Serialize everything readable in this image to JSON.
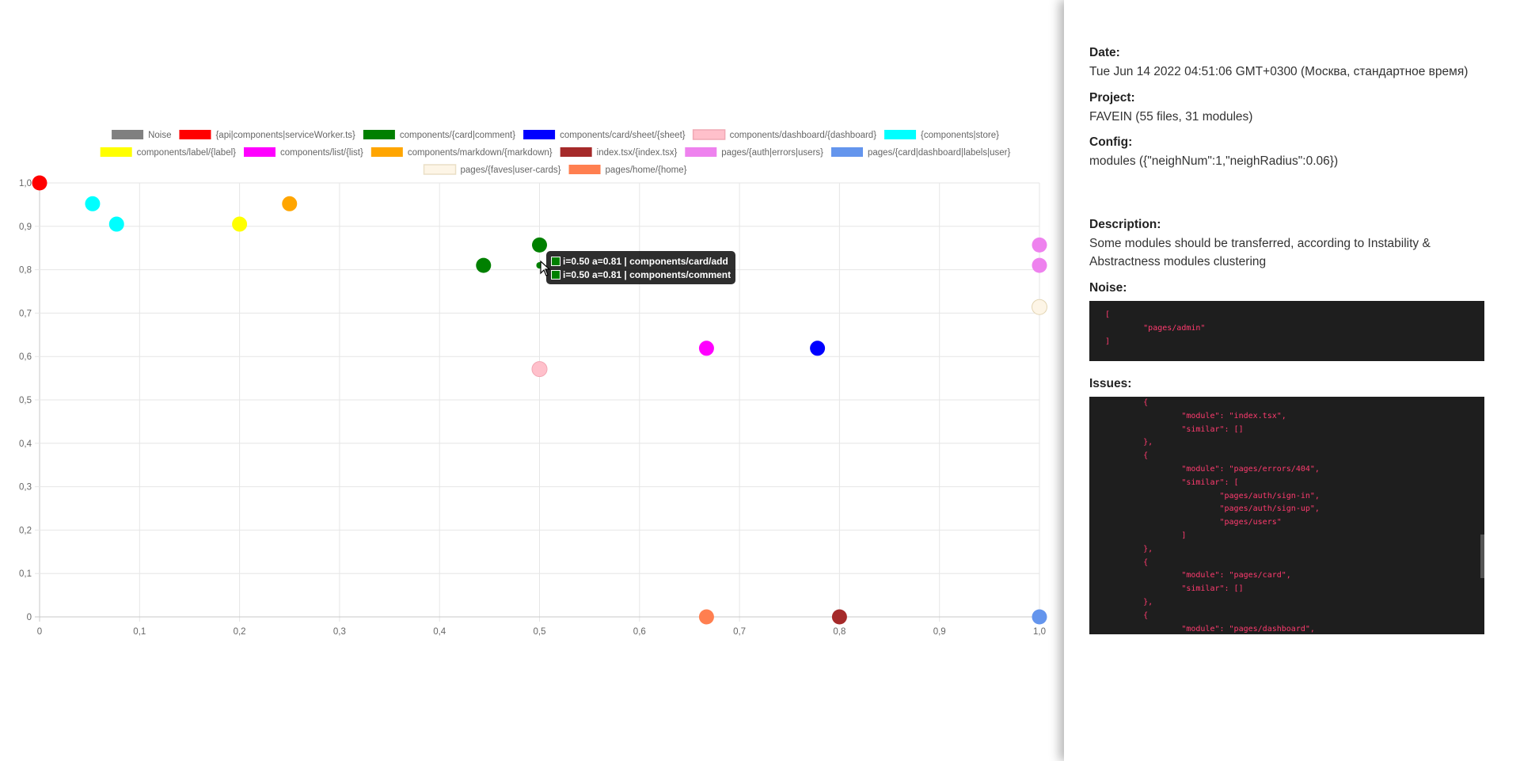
{
  "chart_data": {
    "type": "scatter",
    "title": "",
    "xlabel": "",
    "ylabel": "",
    "xlim": [
      0,
      1
    ],
    "ylim": [
      0,
      1
    ],
    "grid": true,
    "legend_position": "top",
    "x_ticks": [
      "0",
      "0,1",
      "0,2",
      "0,3",
      "0,4",
      "0,5",
      "0,6",
      "0,7",
      "0,8",
      "0,9",
      "1,0"
    ],
    "y_ticks": [
      "0",
      "0,1",
      "0,2",
      "0,3",
      "0,4",
      "0,5",
      "0,6",
      "0,7",
      "0,8",
      "0,9",
      "1,0"
    ],
    "series": [
      {
        "name": "Noise",
        "color": "#808080",
        "points": []
      },
      {
        "name": "{api|components|serviceWorker.ts}",
        "color": "#ff0000",
        "points": [
          [
            0,
            1.0
          ]
        ]
      },
      {
        "name": "components/{card|comment}",
        "color": "#008000",
        "points": [
          [
            0.444,
            0.81
          ],
          [
            0.5,
            0.857
          ],
          [
            0.5,
            0.81
          ],
          [
            0.5,
            0.81
          ]
        ]
      },
      {
        "name": "components/card/sheet/{sheet}",
        "color": "#0000ff",
        "points": [
          [
            0.778,
            0.619
          ]
        ]
      },
      {
        "name": "components/dashboard/{dashboard}",
        "color": "#ffc0cb",
        "points": [
          [
            0.5,
            0.571
          ]
        ]
      },
      {
        "name": "{components|store}",
        "color": "#00ffff",
        "points": [
          [
            0.053,
            0.952
          ],
          [
            0.077,
            0.905
          ]
        ]
      },
      {
        "name": "components/label/{label}",
        "color": "#ffff00",
        "points": [
          [
            0.2,
            0.905
          ]
        ]
      },
      {
        "name": "components/list/{list}",
        "color": "#ff00ff",
        "points": [
          [
            0.667,
            0.619
          ]
        ]
      },
      {
        "name": "components/markdown/{markdown}",
        "color": "#ffa500",
        "points": [
          [
            0.25,
            0.952
          ]
        ]
      },
      {
        "name": "index.tsx/{index.tsx}",
        "color": "#a52a2a",
        "points": [
          [
            0.8,
            0
          ]
        ]
      },
      {
        "name": "pages/{auth|errors|users}",
        "color": "#ee82ee",
        "points": [
          [
            1.0,
            0.857
          ],
          [
            1.0,
            0.81
          ]
        ]
      },
      {
        "name": "pages/{card|dashboard|labels|user}",
        "color": "#6495ed",
        "points": [
          [
            1.0,
            0
          ]
        ]
      },
      {
        "name": "pages/{faves|user-cards}",
        "color": "#fdf5e6",
        "points": [
          [
            1.0,
            0.714
          ]
        ]
      },
      {
        "name": "pages/home/{home}",
        "color": "#ff7f50",
        "points": [
          [
            0.667,
            0
          ]
        ]
      }
    ],
    "legend_rows": [
      [
        0,
        1,
        2,
        3,
        4,
        5
      ],
      [
        6,
        7,
        8,
        9,
        10,
        11
      ],
      [
        12,
        13
      ]
    ],
    "tooltip": {
      "lines": [
        "i=0.50 a=0.81 | components/card/add",
        "i=0.50 a=0.81 | components/comment"
      ]
    }
  },
  "panel": {
    "date_label": "Date:",
    "date_value": "Tue Jun 14 2022 04:51:06 GMT+0300 (Москва, стандартное время)",
    "project_label": "Project:",
    "project_value": "FAVEIN (55 files, 31 modules)",
    "config_label": "Config:",
    "config_value": "modules ({\"neighNum\":1,\"neighRadius\":0.06})",
    "description_label": "Description:",
    "description_value": "Some modules should be transferred, according to Instability & Abstractness modules clustering",
    "noise_label": "Noise:",
    "noise_code": "[\n        \"pages/admin\"\n]",
    "issues_label": "Issues:",
    "issues_code": "        {\n                \"module\": \"index.tsx\",\n                \"similar\": []\n        },\n        {\n                \"module\": \"pages/errors/404\",\n                \"similar\": [\n                        \"pages/auth/sign-in\",\n                        \"pages/auth/sign-up\",\n                        \"pages/users\"\n                ]\n        },\n        {\n                \"module\": \"pages/card\",\n                \"similar\": []\n        },\n        {\n                \"module\": \"pages/dashboard\","
  }
}
